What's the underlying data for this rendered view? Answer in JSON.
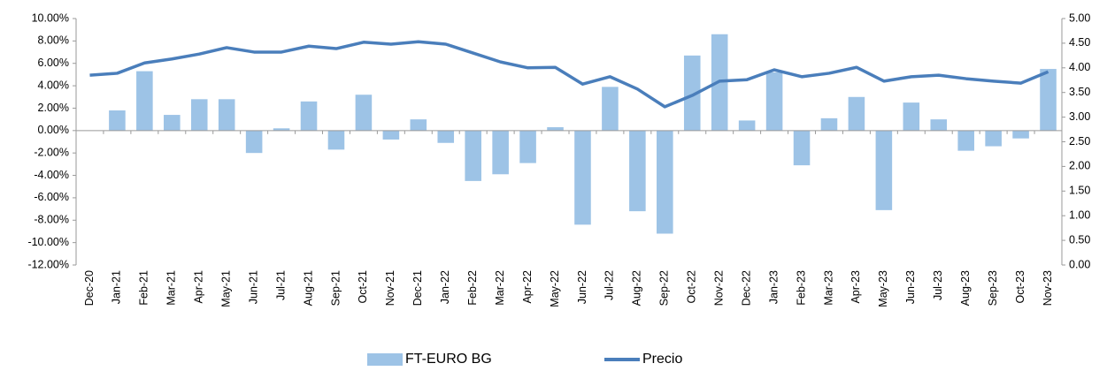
{
  "chart_data": {
    "type": "bar-line",
    "categories": [
      "Dec-20",
      "Jan-21",
      "Feb-21",
      "Mar-21",
      "Apr-21",
      "May-21",
      "Jun-21",
      "Jul-21",
      "Aug-21",
      "Sep-21",
      "Oct-21",
      "Nov-21",
      "Dec-21",
      "Jan-22",
      "Feb-22",
      "Mar-22",
      "Apr-22",
      "May-22",
      "Jun-22",
      "Jul-22",
      "Aug-22",
      "Sep-22",
      "Oct-22",
      "Nov-22",
      "Dec-22",
      "Jan-23",
      "Feb-23",
      "Mar-23",
      "Apr-23",
      "May-23",
      "Jun-23",
      "Jul-23",
      "Aug-23",
      "Sep-23",
      "Oct-23",
      "Nov-23"
    ],
    "series": [
      {
        "name": "FT-EURO BG",
        "type": "bar",
        "color": "#9dc3e6",
        "axis": "y",
        "values": [
          null,
          1.8,
          5.3,
          1.4,
          2.8,
          2.8,
          -2.0,
          0.2,
          2.6,
          -1.7,
          3.2,
          -0.8,
          1.0,
          -1.1,
          -4.5,
          -3.9,
          -2.9,
          0.3,
          -8.4,
          3.9,
          -7.2,
          -9.2,
          6.7,
          8.6,
          0.9,
          5.2,
          -3.1,
          1.1,
          3.0,
          -7.1,
          2.5,
          1.0,
          -1.8,
          -1.4,
          -0.7,
          5.5
        ]
      },
      {
        "name": "Precio",
        "type": "line",
        "color": "#4a7ebb",
        "axis": "y2",
        "values": [
          3.85,
          3.89,
          4.1,
          4.18,
          4.28,
          4.41,
          4.32,
          4.32,
          4.44,
          4.39,
          4.52,
          4.48,
          4.53,
          4.48,
          4.3,
          4.12,
          4.0,
          4.01,
          3.67,
          3.82,
          3.57,
          3.21,
          3.44,
          3.73,
          3.76,
          3.96,
          3.82,
          3.89,
          4.01,
          3.73,
          3.82,
          3.85,
          3.78,
          3.73,
          3.69,
          3.92
        ]
      }
    ],
    "ylim": [
      -12,
      10
    ],
    "yticks": [
      {
        "value": -12,
        "label": "-12.00%"
      },
      {
        "value": -10,
        "label": "-10.00%"
      },
      {
        "value": -8,
        "label": "-8.00%"
      },
      {
        "value": -6,
        "label": "-6.00%"
      },
      {
        "value": -4,
        "label": "-4.00%"
      },
      {
        "value": -2,
        "label": "-2.00%"
      },
      {
        "value": 0,
        "label": "0.00%"
      },
      {
        "value": 2,
        "label": "2.00%"
      },
      {
        "value": 4,
        "label": "4.00%"
      },
      {
        "value": 6,
        "label": "6.00%"
      },
      {
        "value": 8,
        "label": "8.00%"
      },
      {
        "value": 10,
        "label": "10.00%"
      }
    ],
    "y2lim": [
      0,
      5
    ],
    "y2ticks": [
      {
        "value": 0,
        "label": "0.00"
      },
      {
        "value": 0.5,
        "label": "0.50"
      },
      {
        "value": 1,
        "label": "1.00"
      },
      {
        "value": 1.5,
        "label": "1.50"
      },
      {
        "value": 2,
        "label": "2.00"
      },
      {
        "value": 2.5,
        "label": "2.50"
      },
      {
        "value": 3,
        "label": "3.00"
      },
      {
        "value": 3.5,
        "label": "3.50"
      },
      {
        "value": 4,
        "label": "4.00"
      },
      {
        "value": 4.5,
        "label": "4.50"
      },
      {
        "value": 5,
        "label": "5.00"
      }
    ],
    "legend": "bottom"
  }
}
